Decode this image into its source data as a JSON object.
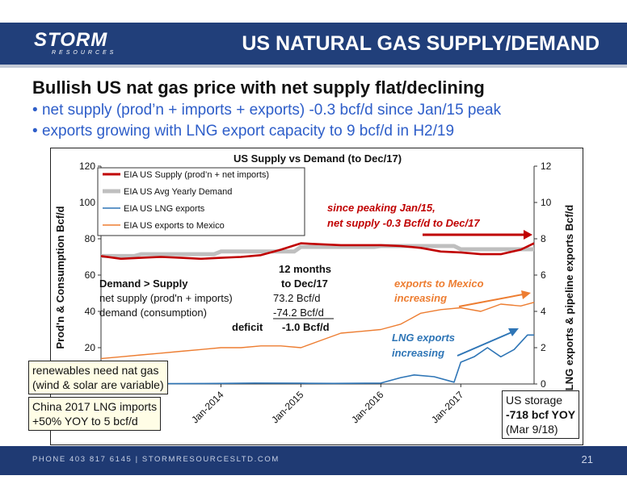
{
  "header": {
    "logo_name": "STORM",
    "logo_sub": "RESOURCES",
    "title": "US NATURAL GAS SUPPLY/DEMAND"
  },
  "headline": "Bullish US nat gas price with net supply flat/declining",
  "bullets": [
    "net supply (prod’n + imports + exports) -0.3 bcf/d since Jan/15 peak",
    "exports growing with LNG export capacity to 9 bcf/d in H2/19"
  ],
  "bullet_marker": "•",
  "colors": {
    "supply": "#c00000",
    "demand": "#bfbfbf",
    "lng": "#2e75b6",
    "mexico": "#ed7d31",
    "header_bg": "#213f7a",
    "bullet_text": "#2e5ec9"
  },
  "chart_data": {
    "type": "line",
    "title": "US Supply vs Demand (to Dec/17)",
    "ylabel_left": "Prod'n & Consumption Bcf/d",
    "ylabel_right": "LNG exports & pipeline exports Bcf/d",
    "ylim_left": [
      0,
      120
    ],
    "ylim_right": [
      0,
      12
    ],
    "yticks_left": [
      "0",
      "20",
      "40",
      "60",
      "80",
      "100",
      "120"
    ],
    "yticks_right": [
      "0",
      "2",
      "4",
      "6",
      "8",
      "10",
      "12"
    ],
    "xlim": [
      "2012-07",
      "2017-12"
    ],
    "xtick_labels": [
      "Jan-2014",
      "Jan-2015",
      "Jan-2016",
      "Jan-2017"
    ],
    "grid": false,
    "legend_position": "top-left",
    "series": [
      {
        "name": "EIA US Supply (prod’n + net imports)",
        "axis": "left",
        "x": [
          "2012-07",
          "2012-10",
          "2013-01",
          "2013-04",
          "2013-07",
          "2013-10",
          "2014-01",
          "2014-04",
          "2014-07",
          "2014-10",
          "2015-01",
          "2015-04",
          "2015-07",
          "2015-10",
          "2016-01",
          "2016-04",
          "2016-07",
          "2016-10",
          "2017-01",
          "2017-04",
          "2017-07",
          "2017-10",
          "2017-12"
        ],
        "values": [
          70.5,
          69,
          69.5,
          70,
          69.5,
          69,
          69.5,
          70,
          71,
          74,
          77.5,
          77,
          76.5,
          76.5,
          76.5,
          76,
          75,
          73,
          72.5,
          71.5,
          71.5,
          74,
          77.5
        ]
      },
      {
        "name": "EIA US Avg Yearly Demand",
        "axis": "left",
        "x": [
          "2012-07",
          "2012-12",
          "2013-01",
          "2013-12",
          "2014-01",
          "2014-12",
          "2015-01",
          "2015-12",
          "2016-01",
          "2016-12",
          "2017-01",
          "2017-12"
        ],
        "values": [
          70.5,
          70.5,
          71.5,
          71.5,
          73,
          73,
          75.5,
          75.5,
          76,
          76,
          74.2,
          74.2
        ]
      },
      {
        "name": "EIA US LNG exports",
        "axis": "right",
        "x": [
          "2012-07",
          "2013-06",
          "2014-01",
          "2014-06",
          "2015-01",
          "2015-06",
          "2016-01",
          "2016-02",
          "2016-04",
          "2016-06",
          "2016-09",
          "2016-12",
          "2017-01",
          "2017-03",
          "2017-05",
          "2017-07",
          "2017-09",
          "2017-11",
          "2017-12"
        ],
        "values": [
          0.02,
          0.02,
          0.03,
          0.05,
          0.04,
          0.03,
          0.05,
          0.15,
          0.35,
          0.5,
          0.4,
          0.1,
          1.2,
          1.5,
          2.0,
          1.5,
          1.9,
          2.7,
          2.7
        ]
      },
      {
        "name": "EIA US exports to Mexico",
        "axis": "right",
        "x": [
          "2012-07",
          "2012-10",
          "2013-01",
          "2013-04",
          "2013-07",
          "2013-10",
          "2014-01",
          "2014-04",
          "2014-07",
          "2014-10",
          "2015-01",
          "2015-04",
          "2015-07",
          "2015-10",
          "2016-01",
          "2016-04",
          "2016-07",
          "2016-10",
          "2017-01",
          "2017-04",
          "2017-07",
          "2017-10",
          "2017-12"
        ],
        "values": [
          1.4,
          1.5,
          1.6,
          1.7,
          1.8,
          1.9,
          2.0,
          2.0,
          2.1,
          2.1,
          2.0,
          2.4,
          2.8,
          2.9,
          3.0,
          3.3,
          3.9,
          4.1,
          4.2,
          4.0,
          4.4,
          4.3,
          4.5
        ]
      }
    ],
    "annotations": {
      "peak_note_line1": "since peaking Jan/15,",
      "peak_note_line2": "net supply -0.3 Bcf/d to Dec/17",
      "table_heading_line1": "12 months",
      "table_heading_line2": "to Dec/17",
      "table_title": "Demand > Supply",
      "net_supply_label": "net supply (prod'n + imports)",
      "net_supply_value": "73.2 Bcf/d",
      "demand_label": "demand (consumption)",
      "demand_value": "-74.2 Bcf/d",
      "deficit_label": "deficit",
      "deficit_value": "-1.0 Bcf/d",
      "mexico_note_line1": "exports to Mexico",
      "mexico_note_line2": "increasing",
      "lng_note_line1": "LNG exports",
      "lng_note_line2": "increasing"
    }
  },
  "callouts": {
    "renewables_line1": "renewables need nat gas",
    "renewables_line2": "(wind & solar are variable)",
    "china_line1": "China 2017 LNG imports",
    "china_line2": "+50% YOY to 5 bcf/d",
    "storage_line1": "US storage",
    "storage_line2": "-718 bcf YOY",
    "storage_line3": "(Mar 9/18)"
  },
  "footer": {
    "contact": "PHONE 403 817 6145   |   STORMRESOURCESLTD.COM",
    "page_number": "21"
  }
}
